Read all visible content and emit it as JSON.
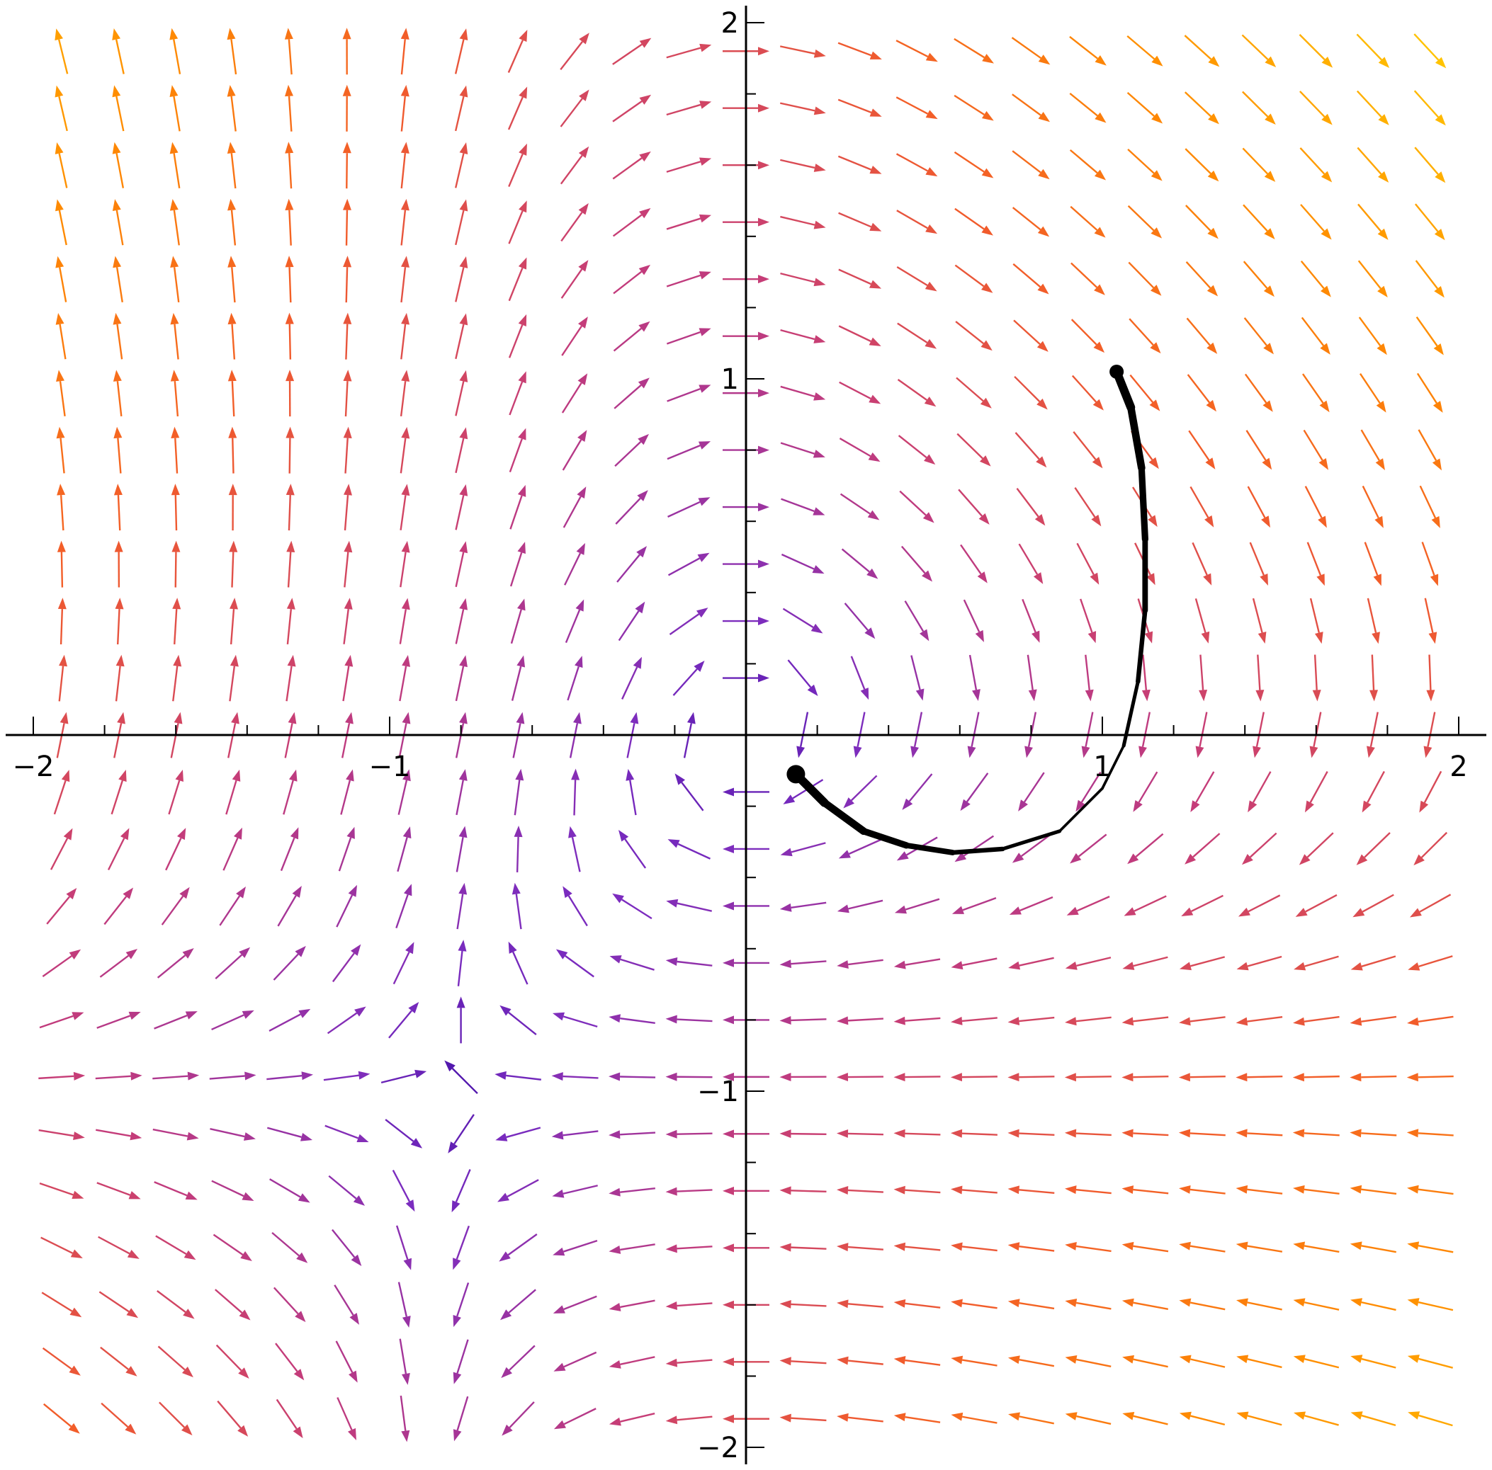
{
  "chart_data": {
    "type": "vector_field",
    "title": "",
    "xlabel": "",
    "ylabel": "",
    "xlim": [
      -2,
      2
    ],
    "ylim": [
      -2,
      2
    ],
    "x_tick_labels": [
      {
        "value": -2,
        "label": "−2"
      },
      {
        "value": -1,
        "label": "−1"
      },
      {
        "value": 1,
        "label": "1"
      },
      {
        "value": 2,
        "label": "2"
      }
    ],
    "y_tick_labels": [
      {
        "value": 2,
        "label": "2"
      },
      {
        "value": 1,
        "label": "1"
      },
      {
        "value": -1,
        "label": "−1"
      },
      {
        "value": -2,
        "label": "−2"
      }
    ],
    "minor_tick_step": 0.2,
    "field": {
      "description_formula": "dx = y + x*y - 0.2*x ; dy = -(x + x*y) (approximate visual fit)",
      "grid_x_range": [
        -1.92,
        1.92
      ],
      "grid_y_range": [
        -1.92,
        1.92
      ],
      "grid_count": 25,
      "color_scale": [
        "#3a0ca3",
        "#7b2cbf",
        "#c43c7a",
        "#f25c2a",
        "#ff8c00",
        "#ffc300"
      ]
    },
    "trajectory": {
      "start": [
        1.04,
        1.02
      ],
      "end": [
        0.14,
        -0.11
      ],
      "points": [
        [
          1.04,
          1.02
        ],
        [
          1.08,
          0.92
        ],
        [
          1.11,
          0.75
        ],
        [
          1.12,
          0.55
        ],
        [
          1.12,
          0.35
        ],
        [
          1.1,
          0.15
        ],
        [
          1.06,
          -0.03
        ],
        [
          1.0,
          -0.15
        ],
        [
          0.88,
          -0.27
        ],
        [
          0.72,
          -0.32
        ],
        [
          0.58,
          -0.33
        ],
        [
          0.45,
          -0.31
        ],
        [
          0.33,
          -0.27
        ],
        [
          0.22,
          -0.19
        ],
        [
          0.14,
          -0.11
        ]
      ],
      "color": "#000000"
    },
    "grid": false,
    "legend": "none"
  }
}
